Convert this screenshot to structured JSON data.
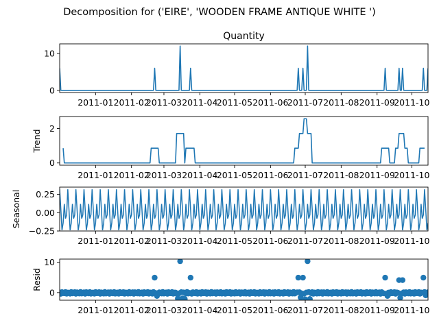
{
  "figure": {
    "title": "Decomposition for ('EIRE', 'WOODEN FRAME ANTIQUE WHITE ')"
  },
  "colors": {
    "line": "#1f77b4",
    "marker": "#1f77b4",
    "axis": "#000000",
    "zero": "#000000"
  },
  "chart_data": [
    {
      "type": "line",
      "title": "Quantity",
      "ylabel": "",
      "x_range": [
        "2010-12-01",
        "2011-10-15"
      ],
      "ylim": [
        -0.6,
        12.6
      ],
      "yticks": [
        {
          "value": 0,
          "label": "0"
        },
        {
          "value": 10,
          "label": "10"
        }
      ],
      "x_ticks": [
        {
          "date": "2011-01-01",
          "label": "2011-01"
        },
        {
          "date": "2011-02-01",
          "label": "2011-02"
        },
        {
          "date": "2011-03-01",
          "label": "2011-03"
        },
        {
          "date": "2011-04-01",
          "label": "2011-04"
        },
        {
          "date": "2011-05-01",
          "label": "2011-05"
        },
        {
          "date": "2011-06-01",
          "label": "2011-06"
        },
        {
          "date": "2011-07-01",
          "label": "2011-07"
        },
        {
          "date": "2011-08-01",
          "label": "2011-08"
        },
        {
          "date": "2011-09-01",
          "label": "2011-09"
        },
        {
          "date": "2011-10-01",
          "label": "2011-10"
        }
      ],
      "series": [
        {
          "points": [
            [
              "2010-12-01",
              6
            ],
            [
              "2010-12-02",
              0
            ],
            [
              "2011-02-20",
              0
            ],
            [
              "2011-02-21",
              6
            ],
            [
              "2011-02-22",
              0
            ],
            [
              "2011-03-14",
              0
            ],
            [
              "2011-03-15",
              12
            ],
            [
              "2011-03-16",
              0
            ],
            [
              "2011-03-23",
              0
            ],
            [
              "2011-03-24",
              6
            ],
            [
              "2011-03-25",
              0
            ],
            [
              "2011-06-24",
              0
            ],
            [
              "2011-06-25",
              6
            ],
            [
              "2011-06-26",
              0
            ],
            [
              "2011-06-28",
              0
            ],
            [
              "2011-06-29",
              6
            ],
            [
              "2011-06-30",
              0
            ],
            [
              "2011-07-02",
              0
            ],
            [
              "2011-07-03",
              12
            ],
            [
              "2011-07-04",
              0
            ],
            [
              "2011-09-07",
              0
            ],
            [
              "2011-09-08",
              6
            ],
            [
              "2011-09-09",
              0
            ],
            [
              "2011-09-19",
              0
            ],
            [
              "2011-09-20",
              6
            ],
            [
              "2011-09-21",
              0
            ],
            [
              "2011-09-22",
              0
            ],
            [
              "2011-09-23",
              6
            ],
            [
              "2011-09-24",
              0
            ],
            [
              "2011-10-10",
              0
            ],
            [
              "2011-10-11",
              6
            ],
            [
              "2011-10-12",
              0
            ],
            [
              "2011-10-14",
              0
            ],
            [
              "2011-10-15",
              6
            ]
          ]
        }
      ]
    },
    {
      "type": "line",
      "title": "",
      "ylabel": "Trend",
      "x_range": [
        "2010-12-01",
        "2011-10-15"
      ],
      "ylim": [
        -0.13,
        2.7
      ],
      "yticks": [
        {
          "value": 0,
          "label": "0"
        },
        {
          "value": 2,
          "label": "2"
        }
      ],
      "series": [
        {
          "points": [
            [
              "2010-12-04",
              0.86
            ],
            [
              "2010-12-05",
              0
            ],
            [
              "2011-02-17",
              0
            ],
            [
              "2011-02-18",
              0.86
            ],
            [
              "2011-02-24",
              0.86
            ],
            [
              "2011-02-25",
              0
            ],
            [
              "2011-03-11",
              0
            ],
            [
              "2011-03-12",
              1.71
            ],
            [
              "2011-03-18",
              1.71
            ],
            [
              "2011-03-19",
              0
            ],
            [
              "2011-03-20",
              0.86
            ],
            [
              "2011-03-27",
              0.86
            ],
            [
              "2011-03-28",
              0
            ],
            [
              "2011-06-21",
              0
            ],
            [
              "2011-06-22",
              0.86
            ],
            [
              "2011-06-25",
              0.86
            ],
            [
              "2011-06-26",
              1.71
            ],
            [
              "2011-06-29",
              1.71
            ],
            [
              "2011-06-30",
              2.57
            ],
            [
              "2011-07-02",
              2.57
            ],
            [
              "2011-07-03",
              1.71
            ],
            [
              "2011-07-06",
              1.71
            ],
            [
              "2011-07-07",
              0
            ],
            [
              "2011-09-04",
              0
            ],
            [
              "2011-09-05",
              0.86
            ],
            [
              "2011-09-11",
              0.86
            ],
            [
              "2011-09-12",
              0
            ],
            [
              "2011-09-16",
              0
            ],
            [
              "2011-09-17",
              0.86
            ],
            [
              "2011-09-19",
              0.86
            ],
            [
              "2011-09-20",
              1.71
            ],
            [
              "2011-09-24",
              1.71
            ],
            [
              "2011-09-25",
              0.86
            ],
            [
              "2011-09-27",
              0.86
            ],
            [
              "2011-09-28",
              0
            ],
            [
              "2011-10-07",
              0
            ],
            [
              "2011-10-08",
              0.86
            ],
            [
              "2011-10-12",
              0.86
            ]
          ]
        }
      ]
    },
    {
      "type": "line",
      "title": "",
      "ylabel": "Seasonal",
      "x_range": [
        "2010-12-01",
        "2011-10-15"
      ],
      "ylim": [
        -0.25,
        0.35
      ],
      "yticks": [
        {
          "value": -0.25,
          "label": "−0.25"
        },
        {
          "value": 0,
          "label": "0.00"
        },
        {
          "value": 0.25,
          "label": "0.25"
        }
      ],
      "seasonal_pattern": {
        "start": "2010-12-01",
        "period_days": 7,
        "values": [
          0.32,
          0.05,
          -0.24,
          -0.14,
          0.12,
          -0.08,
          -0.03
        ]
      }
    },
    {
      "type": "scatter",
      "title": "",
      "ylabel": "Resid",
      "x_range": [
        "2010-12-01",
        "2011-10-15"
      ],
      "ylim": [
        -2.5,
        11
      ],
      "yticks": [
        {
          "value": 0,
          "label": "0"
        },
        {
          "value": 10,
          "label": "10"
        }
      ],
      "baseline": 0,
      "residual_points": [
        [
          "2011-02-21",
          4.9
        ],
        [
          "2011-03-15",
          10.3
        ],
        [
          "2011-03-24",
          4.9
        ],
        [
          "2011-06-25",
          4.9
        ],
        [
          "2011-06-29",
          4.9
        ],
        [
          "2011-07-03",
          10.3
        ],
        [
          "2011-09-08",
          4.9
        ],
        [
          "2011-09-20",
          4.1
        ],
        [
          "2011-09-23",
          4.1
        ],
        [
          "2011-10-11",
          4.9
        ],
        [
          "2011-03-13",
          -1.9
        ],
        [
          "2011-03-17",
          -1.9
        ],
        [
          "2011-03-19",
          -2.1
        ],
        [
          "2011-06-27",
          -1.6
        ],
        [
          "2011-07-01",
          -2.2
        ],
        [
          "2011-07-05",
          -2.1
        ],
        [
          "2011-09-21",
          -1.7
        ],
        [
          "2011-02-23",
          -1.1
        ],
        [
          "2011-09-10",
          -1.1
        ],
        [
          "2011-10-13",
          -0.9
        ]
      ],
      "noise_amplitude": 0.6
    }
  ]
}
